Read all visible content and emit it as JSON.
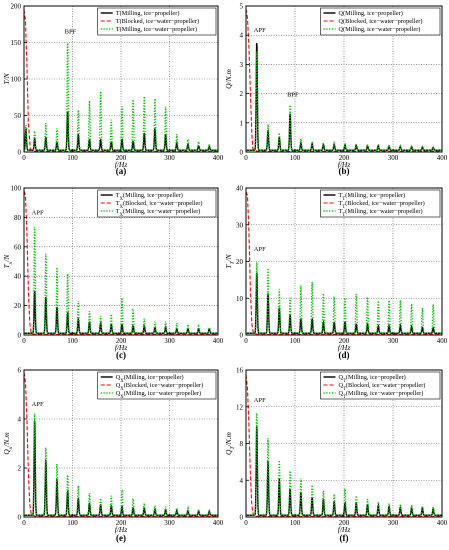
{
  "panel_labels": [
    "(a)",
    "(b)",
    "(c)",
    "(d)",
    "(e)",
    "(f)"
  ],
  "colors": {
    "milling_ice_propeller": "#000000",
    "blocked_ice_water_propeller": "#ff0000",
    "milling_ice_water_propeller": "#00c000"
  },
  "chart_data": [
    {
      "type": "line",
      "panel": "(a)",
      "xlabel": "f/Hz",
      "ylabel": "T/N",
      "xlim": [
        0,
        400
      ],
      "ylim": [
        0,
        200
      ],
      "xticks": [
        0,
        100,
        200,
        300,
        400
      ],
      "yticks": [
        0,
        50,
        100,
        150,
        200
      ],
      "grid": true,
      "legend_position": "top-right",
      "annotations": [
        {
          "text": "BPF",
          "x": 90,
          "y": 158
        }
      ],
      "series": [
        {
          "name": "T(Milling, ice−propeller)",
          "style": "solid",
          "x": [
            4,
            22,
            45,
            68,
            90,
            112,
            135,
            158,
            180,
            202,
            225,
            248,
            270,
            292,
            315,
            338,
            360,
            382
          ],
          "y": [
            30,
            17,
            18,
            12,
            55,
            22,
            15,
            14,
            12,
            15,
            12,
            24,
            30,
            22,
            10,
            8,
            6,
            5
          ]
        },
        {
          "name": "T(Blocked, ice−water−propeller)",
          "style": "dashed",
          "x": [
            0,
            3,
            6,
            9,
            13
          ],
          "y": [
            195,
            180,
            120,
            40,
            4
          ]
        },
        {
          "name": "T(Milling, ice−water−propeller)",
          "style": "dotted",
          "x": [
            4,
            22,
            45,
            68,
            90,
            112,
            135,
            158,
            180,
            202,
            225,
            248,
            270,
            292,
            315,
            338,
            360,
            382
          ],
          "y": [
            35,
            25,
            38,
            30,
            152,
            55,
            68,
            82,
            42,
            62,
            72,
            75,
            72,
            60,
            22,
            15,
            12,
            9
          ]
        }
      ]
    },
    {
      "type": "line",
      "panel": "(b)",
      "xlabel": "f/Hz",
      "ylabel": "Q/N.m",
      "xlim": [
        0,
        400
      ],
      "ylim": [
        0,
        5
      ],
      "xticks": [
        0,
        100,
        200,
        300,
        400
      ],
      "yticks": [
        0,
        1,
        2,
        3,
        4,
        5
      ],
      "grid": true,
      "legend_position": "top-right",
      "annotations": [
        {
          "text": "APF",
          "x": 22,
          "y": 4.0
        },
        {
          "text": "BPF",
          "x": 90,
          "y": 1.8
        }
      ],
      "series": [
        {
          "name": "Q(Milling, ice−propeller)",
          "style": "solid",
          "x": [
            22,
            45,
            68,
            90,
            112,
            135,
            158,
            180,
            202,
            225,
            248,
            270,
            292,
            315,
            338,
            360,
            382
          ],
          "y": [
            3.8,
            0.7,
            0.45,
            1.3,
            0.25,
            0.22,
            0.2,
            0.2,
            0.18,
            0.18,
            0.16,
            0.16,
            0.14,
            0.13,
            0.12,
            0.1,
            0.1
          ]
        },
        {
          "name": "Q(Blocked, ice−water−propeller)",
          "style": "dashed",
          "x": [
            0,
            3,
            6,
            9,
            12,
            14
          ],
          "y": [
            4.9,
            4.6,
            3.6,
            2.0,
            0.6,
            0.1
          ]
        },
        {
          "name": "Q(Milling, ice−water−propeller)",
          "style": "dotted",
          "x": [
            22,
            45,
            68,
            90,
            112,
            135,
            158,
            180,
            202,
            225,
            248,
            270,
            292,
            315,
            338,
            360,
            382
          ],
          "y": [
            3.5,
            0.9,
            0.6,
            1.6,
            0.4,
            0.3,
            0.25,
            0.25,
            0.22,
            0.2,
            0.2,
            0.18,
            0.17,
            0.15,
            0.14,
            0.13,
            0.12
          ]
        }
      ]
    },
    {
      "type": "line",
      "panel": "(c)",
      "xlabel": "f/Hz",
      "ylabel": "T_x/N",
      "xlim": [
        0,
        400
      ],
      "ylim": [
        0,
        100
      ],
      "xticks": [
        0,
        100,
        200,
        300,
        400
      ],
      "yticks": [
        0,
        20,
        40,
        60,
        80,
        100
      ],
      "grid": true,
      "legend_position": "top-right",
      "annotations": [
        {
          "text": "APF",
          "x": 22,
          "y": 80
        }
      ],
      "series": [
        {
          "name": "T_X(Milling, ice−propeller)",
          "style": "solid",
          "x": [
            22,
            45,
            68,
            90,
            112,
            135,
            158,
            180,
            202,
            225,
            248,
            270,
            292,
            315,
            338,
            360,
            382
          ],
          "y": [
            30,
            25,
            18,
            14,
            10,
            8,
            7,
            6,
            6,
            5,
            5,
            4,
            4,
            3,
            3,
            3,
            3
          ]
        },
        {
          "name": "T_X(Blocked, ice−water−propeller)",
          "style": "dashed",
          "x": [
            0,
            3,
            6,
            9,
            12,
            15
          ],
          "y": [
            98,
            95,
            70,
            30,
            8,
            1
          ]
        },
        {
          "name": "T_X(Milling, ice−water−propeller)",
          "style": "dotted",
          "x": [
            22,
            45,
            68,
            90,
            112,
            135,
            158,
            180,
            202,
            225,
            248,
            270,
            292,
            315,
            338,
            360,
            382
          ],
          "y": [
            75,
            55,
            45,
            42,
            22,
            15,
            12,
            13,
            25,
            16,
            10,
            8,
            8,
            7,
            6,
            5,
            4
          ]
        }
      ]
    },
    {
      "type": "line",
      "panel": "(d)",
      "xlabel": "f/Hz",
      "ylabel": "T_T/N",
      "xlim": [
        0,
        400
      ],
      "ylim": [
        0,
        40
      ],
      "xticks": [
        0,
        100,
        200,
        300,
        400
      ],
      "yticks": [
        0,
        10,
        20,
        30,
        40
      ],
      "grid": true,
      "legend_position": "top-right",
      "annotations": [
        {
          "text": "APF",
          "x": 22,
          "y": 22
        }
      ],
      "series": [
        {
          "name": "T_T(Milling, ice−propeller)",
          "style": "solid",
          "x": [
            22,
            45,
            68,
            90,
            112,
            135,
            158,
            180,
            202,
            225,
            248,
            270,
            292,
            315,
            338,
            360,
            382
          ],
          "y": [
            17,
            11,
            7,
            5,
            4,
            4,
            3,
            3,
            3,
            2.5,
            2.5,
            2,
            2,
            2,
            1.8,
            1.6,
            1.5
          ]
        },
        {
          "name": "T_T(Blocked, ice−water−propeller)",
          "style": "dashed",
          "x": [
            0,
            3,
            6,
            9,
            12,
            15
          ],
          "y": [
            39,
            38,
            28,
            12,
            3,
            0.5
          ]
        },
        {
          "name": "T_T(Milling, ice−water−propeller)",
          "style": "dotted",
          "x": [
            22,
            45,
            68,
            90,
            112,
            135,
            158,
            180,
            202,
            225,
            248,
            270,
            292,
            315,
            338,
            360,
            382
          ],
          "y": [
            20,
            18,
            12,
            10,
            13,
            14,
            11,
            10,
            10,
            11,
            10,
            9,
            9,
            9,
            8,
            7,
            8
          ]
        }
      ]
    },
    {
      "type": "line",
      "panel": "(e)",
      "xlabel": "f/Hz",
      "ylabel": "Q_x/N.m",
      "xlim": [
        0,
        400
      ],
      "ylim": [
        0,
        6
      ],
      "xticks": [
        0,
        100,
        200,
        300,
        400
      ],
      "yticks": [
        0,
        2,
        4,
        6
      ],
      "grid": true,
      "legend_position": "top-right",
      "annotations": [
        {
          "text": "APF",
          "x": 22,
          "y": 4.4
        }
      ],
      "series": [
        {
          "name": "Q_X(Milling, ice−propeller)",
          "style": "solid",
          "x": [
            22,
            45,
            68,
            90,
            112,
            135,
            158,
            180,
            202,
            225,
            248,
            270,
            292,
            315,
            338,
            360,
            382
          ],
          "y": [
            4.0,
            2.3,
            1.5,
            1.0,
            0.7,
            0.5,
            0.45,
            0.4,
            0.35,
            0.3,
            0.3,
            0.25,
            0.22,
            0.2,
            0.18,
            0.16,
            0.15
          ]
        },
        {
          "name": "Q_X(Blocked, ice−water−propeller)",
          "style": "dashed",
          "x": [
            0,
            3,
            6,
            9,
            12,
            15
          ],
          "y": [
            5.9,
            5.5,
            4.0,
            1.8,
            0.5,
            0.1
          ]
        },
        {
          "name": "Q_X(Milling, ice−water−propeller)",
          "style": "dotted",
          "x": [
            22,
            45,
            68,
            90,
            112,
            135,
            158,
            180,
            202,
            225,
            248,
            270,
            292,
            315,
            338,
            360,
            382
          ],
          "y": [
            4.3,
            2.8,
            2.1,
            1.7,
            1.2,
            0.9,
            0.7,
            0.8,
            1.0,
            0.7,
            0.5,
            0.4,
            0.35,
            0.3,
            0.3,
            0.25,
            0.2
          ]
        }
      ]
    },
    {
      "type": "line",
      "panel": "(f)",
      "xlabel": "f/Hz",
      "ylabel": "Q_T/N.m",
      "xlim": [
        0,
        400
      ],
      "ylim": [
        0,
        16
      ],
      "xticks": [
        0,
        100,
        200,
        300,
        400
      ],
      "yticks": [
        0,
        4,
        8,
        12,
        16
      ],
      "grid": true,
      "legend_position": "top-right",
      "annotations": [
        {
          "text": "APF",
          "x": 22,
          "y": 12.2
        }
      ],
      "series": [
        {
          "name": "Q_T(Milling, ice−propeller)",
          "style": "solid",
          "x": [
            22,
            45,
            68,
            90,
            112,
            135,
            158,
            180,
            202,
            225,
            248,
            270,
            292,
            315,
            338,
            360,
            382
          ],
          "y": [
            10,
            6,
            4,
            3,
            2.5,
            2,
            1.8,
            1.5,
            1.4,
            1.3,
            1.2,
            1.1,
            1.0,
            0.9,
            0.8,
            0.8,
            0.7
          ]
        },
        {
          "name": "Q_T(Blocked, ice−water−propeller)",
          "style": "dashed",
          "x": [
            0,
            3,
            6,
            9,
            12,
            15
          ],
          "y": [
            15.5,
            14,
            10,
            4.5,
            1.2,
            0.2
          ]
        },
        {
          "name": "Q_T(Milling, ice−water−propeller)",
          "style": "dotted",
          "x": [
            22,
            45,
            68,
            90,
            112,
            135,
            158,
            180,
            202,
            225,
            248,
            270,
            292,
            315,
            338,
            360,
            382
          ],
          "y": [
            11.5,
            8.5,
            6,
            5,
            4,
            3.3,
            2.7,
            2.3,
            3.0,
            2.2,
            1.8,
            1.5,
            1.3,
            1.2,
            1.1,
            1.0,
            0.9
          ]
        }
      ]
    }
  ]
}
